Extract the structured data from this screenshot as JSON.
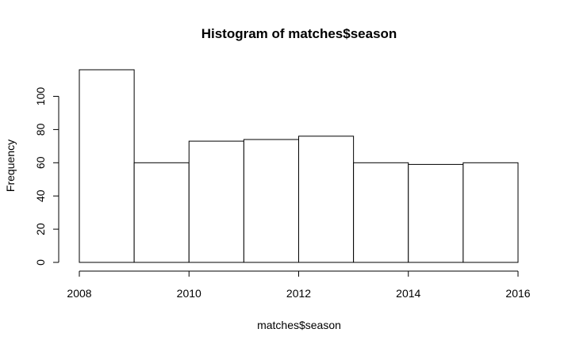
{
  "chart_data": {
    "type": "bar",
    "title": "Histogram of matches$season",
    "xlabel": "matches$season",
    "ylabel": "Frequency",
    "bins": [
      {
        "start": 2008,
        "end": 2009,
        "value": 116
      },
      {
        "start": 2009,
        "end": 2010,
        "value": 60
      },
      {
        "start": 2010,
        "end": 2011,
        "value": 73
      },
      {
        "start": 2011,
        "end": 2012,
        "value": 74
      },
      {
        "start": 2012,
        "end": 2013,
        "value": 76
      },
      {
        "start": 2013,
        "end": 2014,
        "value": 60
      },
      {
        "start": 2014,
        "end": 2015,
        "value": 59
      },
      {
        "start": 2015,
        "end": 2016,
        "value": 60
      }
    ],
    "xlim": [
      2008,
      2016
    ],
    "ylim": [
      0,
      116
    ],
    "x_ticks": [
      2008,
      2010,
      2012,
      2014,
      2016
    ],
    "y_ticks": [
      0,
      20,
      40,
      60,
      80,
      100
    ],
    "bar_fill": "#ffffff",
    "bar_stroke": "#000000",
    "grid": false,
    "legend": "none"
  }
}
